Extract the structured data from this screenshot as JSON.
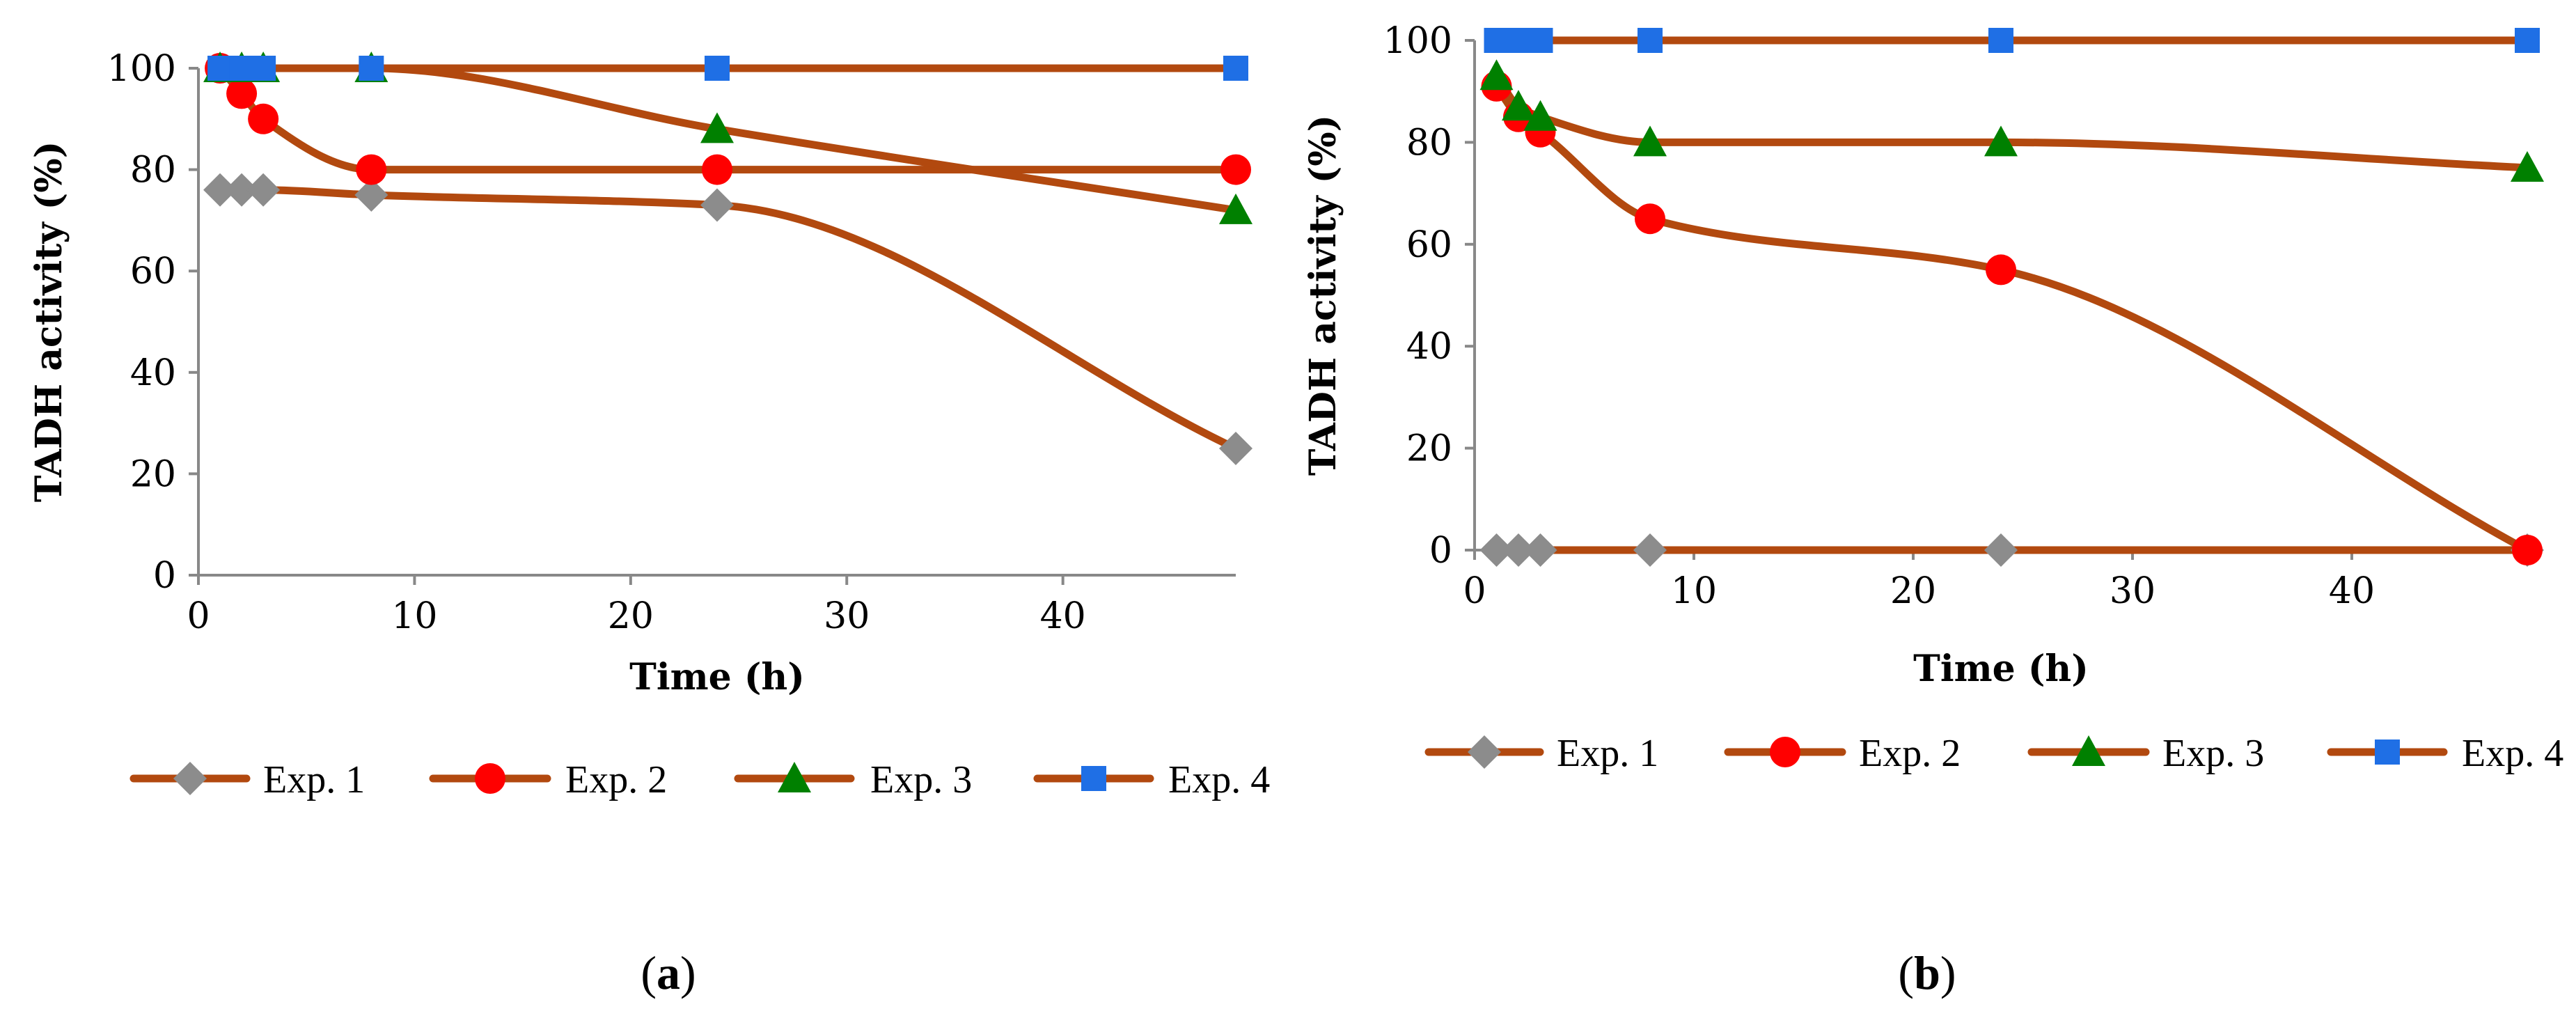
{
  "chart_data": [
    {
      "type": "line",
      "panel_label": "a",
      "xlabel": "Time (h)",
      "ylabel": "TADH activity (%)",
      "xlim": [
        0,
        48
      ],
      "ylim": [
        0,
        100
      ],
      "xticks": [
        0,
        10,
        20,
        30,
        40
      ],
      "yticks": [
        0,
        20,
        40,
        60,
        80,
        100
      ],
      "legend_position": "bottom",
      "line_color": "#B2490F",
      "series": [
        {
          "name": "Exp. 1",
          "marker": "diamond",
          "marker_color": "#8C8C8C",
          "x": [
            1,
            2,
            3,
            8,
            24,
            48
          ],
          "y": [
            76,
            76,
            76,
            75,
            73,
            25
          ]
        },
        {
          "name": "Exp. 2",
          "marker": "circle",
          "marker_color": "#FF0000",
          "x": [
            1,
            2,
            3,
            8,
            24,
            48
          ],
          "y": [
            100,
            95,
            90,
            80,
            80,
            80
          ]
        },
        {
          "name": "Exp. 3",
          "marker": "triangle",
          "marker_color": "#008000",
          "x": [
            1,
            2,
            3,
            8,
            24,
            48
          ],
          "y": [
            100,
            100,
            100,
            100,
            88,
            72
          ]
        },
        {
          "name": "Exp. 4",
          "marker": "square",
          "marker_color": "#1F6FE5",
          "x": [
            1,
            2,
            3,
            8,
            24,
            48
          ],
          "y": [
            100,
            100,
            100,
            100,
            100,
            100
          ]
        }
      ]
    },
    {
      "type": "line",
      "panel_label": "b",
      "xlabel": "Time (h)",
      "ylabel": "TADH activity (%)",
      "xlim": [
        0,
        48
      ],
      "ylim": [
        0,
        100
      ],
      "xticks": [
        0,
        10,
        20,
        30,
        40
      ],
      "yticks": [
        0,
        20,
        40,
        60,
        80,
        100
      ],
      "legend_position": "bottom",
      "line_color": "#B2490F",
      "series": [
        {
          "name": "Exp. 1",
          "marker": "diamond",
          "marker_color": "#8C8C8C",
          "x": [
            1,
            2,
            3,
            8,
            24,
            48
          ],
          "y": [
            0,
            0,
            0,
            0,
            0,
            0
          ]
        },
        {
          "name": "Exp. 2",
          "marker": "circle",
          "marker_color": "#FF0000",
          "x": [
            1,
            2,
            3,
            8,
            24,
            48
          ],
          "y": [
            91,
            85,
            82,
            65,
            55,
            0
          ]
        },
        {
          "name": "Exp. 3",
          "marker": "triangle",
          "marker_color": "#008000",
          "x": [
            1,
            2,
            3,
            8,
            24,
            48
          ],
          "y": [
            93,
            87,
            85,
            80,
            80,
            75
          ]
        },
        {
          "name": "Exp. 4",
          "marker": "square",
          "marker_color": "#1F6FE5",
          "x": [
            1,
            2,
            3,
            8,
            24,
            48
          ],
          "y": [
            100,
            100,
            100,
            100,
            100,
            100
          ]
        }
      ]
    }
  ]
}
